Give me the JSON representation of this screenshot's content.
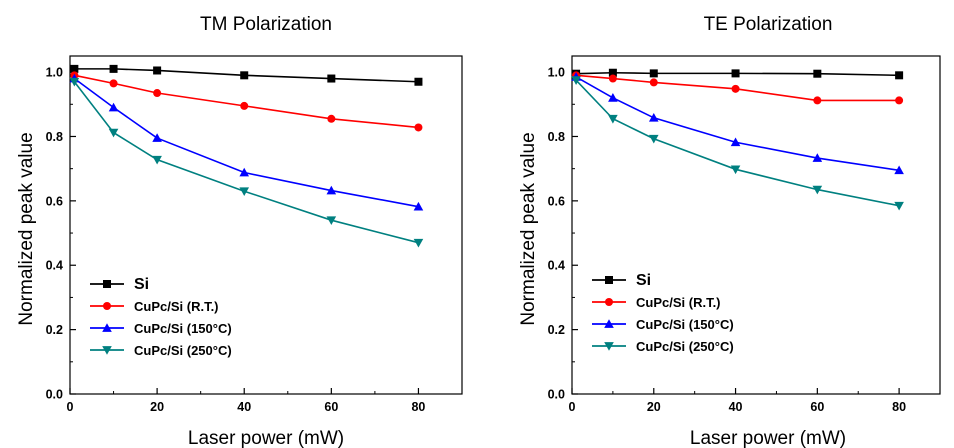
{
  "chart_data": [
    {
      "type": "line",
      "title": "TM Polarization",
      "xlabel": "Laser power (mW)",
      "ylabel": "Normalized peak value",
      "xlim": [
        0,
        90
      ],
      "ylim": [
        0.0,
        1.05
      ],
      "xticks": [
        "0",
        "20",
        "40",
        "60",
        "80"
      ],
      "yticks": [
        "0.0",
        "0.2",
        "0.4",
        "0.6",
        "0.8",
        "1.0"
      ],
      "grid": false,
      "legend_position": "bottom-left",
      "series": [
        {
          "name": "Si",
          "marker": "square",
          "color": "#000000",
          "x": [
            1,
            10,
            20,
            40,
            60,
            80
          ],
          "y": [
            1.01,
            1.01,
            1.005,
            0.99,
            0.98,
            0.97
          ]
        },
        {
          "name": "CuPc/Si (R.T.)",
          "marker": "circle",
          "color": "#ff0000",
          "x": [
            1,
            10,
            20,
            40,
            60,
            80
          ],
          "y": [
            0.99,
            0.965,
            0.935,
            0.895,
            0.855,
            0.828
          ]
        },
        {
          "name": "CuPc/Si (150°C)",
          "marker": "triangle-up",
          "color": "#0000ff",
          "x": [
            1,
            10,
            20,
            40,
            60,
            80
          ],
          "y": [
            0.98,
            0.89,
            0.795,
            0.688,
            0.632,
            0.582
          ]
        },
        {
          "name": "CuPc/Si (250°C)",
          "marker": "triangle-down",
          "color": "#008080",
          "x": [
            1,
            10,
            20,
            40,
            60,
            80
          ],
          "y": [
            0.97,
            0.812,
            0.728,
            0.63,
            0.54,
            0.47
          ]
        }
      ]
    },
    {
      "type": "line",
      "title": "TE Polarization",
      "xlabel": "Laser power (mW)",
      "ylabel": "Normalized peak value",
      "xlim": [
        0,
        90
      ],
      "ylim": [
        0.0,
        1.05
      ],
      "xticks": [
        "0",
        "20",
        "40",
        "60",
        "80"
      ],
      "yticks": [
        "0.0",
        "0.2",
        "0.4",
        "0.6",
        "0.8",
        "1.0"
      ],
      "grid": false,
      "legend_position": "bottom-left",
      "series": [
        {
          "name": "Si",
          "marker": "square",
          "color": "#000000",
          "x": [
            1,
            10,
            20,
            40,
            60,
            80
          ],
          "y": [
            0.995,
            0.998,
            0.996,
            0.996,
            0.995,
            0.99
          ]
        },
        {
          "name": "CuPc/Si (R.T.)",
          "marker": "circle",
          "color": "#ff0000",
          "x": [
            1,
            10,
            20,
            40,
            60,
            80
          ],
          "y": [
            0.99,
            0.98,
            0.968,
            0.948,
            0.912,
            0.912
          ]
        },
        {
          "name": "CuPc/Si (150°C)",
          "marker": "triangle-up",
          "color": "#0000ff",
          "x": [
            1,
            10,
            20,
            40,
            60,
            80
          ],
          "y": [
            0.985,
            0.92,
            0.858,
            0.782,
            0.733,
            0.695
          ]
        },
        {
          "name": "CuPc/Si (250°C)",
          "marker": "triangle-down",
          "color": "#008080",
          "x": [
            1,
            10,
            20,
            40,
            60,
            80
          ],
          "y": [
            0.975,
            0.855,
            0.793,
            0.698,
            0.635,
            0.585
          ]
        }
      ]
    }
  ]
}
